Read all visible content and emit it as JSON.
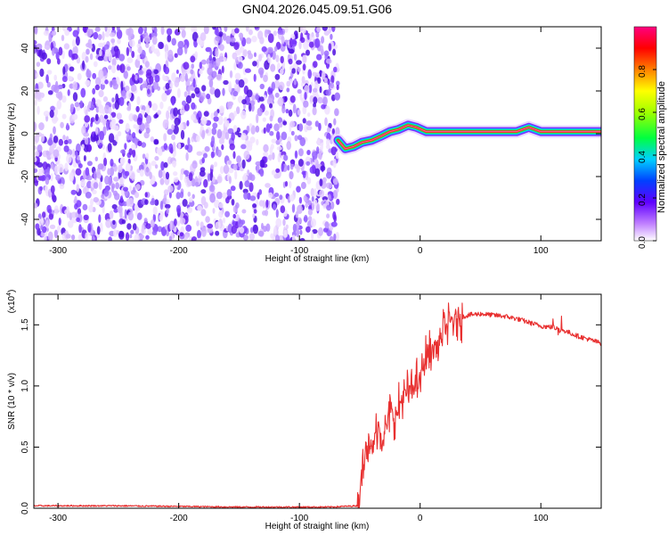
{
  "title": "GN04.2026.045.09.51.G06",
  "chart_data": [
    {
      "type": "heatmap",
      "xlabel": "Height of straight line (km)",
      "ylabel": "Frequency (Hz)",
      "xlim": [
        -320,
        150
      ],
      "ylim": [
        -50,
        50
      ],
      "xticks": [
        -300,
        -200,
        -100,
        0,
        100
      ],
      "yticks": [
        -40,
        -20,
        0,
        20,
        40
      ],
      "noise_region": [
        -320,
        -68
      ],
      "signal_track": [
        {
          "x": -68,
          "y": -3
        },
        {
          "x": -62,
          "y": -7
        },
        {
          "x": -55,
          "y": -6
        },
        {
          "x": -48,
          "y": -4
        },
        {
          "x": -40,
          "y": -3
        },
        {
          "x": -32,
          "y": -1
        },
        {
          "x": -25,
          "y": 1
        },
        {
          "x": -18,
          "y": 2
        },
        {
          "x": -10,
          "y": 4
        },
        {
          "x": -3,
          "y": 3
        },
        {
          "x": 5,
          "y": 1
        },
        {
          "x": 20,
          "y": 1
        },
        {
          "x": 40,
          "y": 1
        },
        {
          "x": 60,
          "y": 1
        },
        {
          "x": 80,
          "y": 1
        },
        {
          "x": 90,
          "y": 3
        },
        {
          "x": 100,
          "y": 1
        },
        {
          "x": 150,
          "y": 1
        }
      ],
      "colorbar": {
        "label": "Normalized spectral amplitude",
        "range": [
          0,
          1
        ],
        "ticks": [
          "0.0",
          "0.2",
          "0.4",
          "0.6",
          "0.8"
        ]
      }
    },
    {
      "type": "line",
      "xlabel": "Height of straight line (km)",
      "ylabel": "SNR (10 * v/v)",
      "scale_label": "(x10",
      "scale_exp": "4",
      "xlim": [
        -320,
        150
      ],
      "ylim": [
        0,
        1.75
      ],
      "xticks": [
        -300,
        -200,
        -100,
        0,
        100
      ],
      "yticks": [
        "0.0",
        "0.5",
        "1.0",
        "1.5"
      ],
      "series_color": "#e83030",
      "x": [
        -320,
        -250,
        -150,
        -75,
        -52,
        -48,
        -45,
        -40,
        -35,
        -30,
        -25,
        -20,
        -15,
        -10,
        -5,
        0,
        5,
        10,
        15,
        20,
        25,
        30,
        40,
        50,
        60,
        70,
        80,
        90,
        100,
        110,
        120,
        130,
        140,
        150
      ],
      "y": [
        0.02,
        0.02,
        0.01,
        0.01,
        0.02,
        0.3,
        0.55,
        0.45,
        0.7,
        0.55,
        0.8,
        0.75,
        0.9,
        0.95,
        1.0,
        1.05,
        1.25,
        1.3,
        1.32,
        1.45,
        1.52,
        1.55,
        1.58,
        1.59,
        1.58,
        1.57,
        1.55,
        1.52,
        1.49,
        1.48,
        1.45,
        1.41,
        1.38,
        1.35
      ]
    }
  ]
}
